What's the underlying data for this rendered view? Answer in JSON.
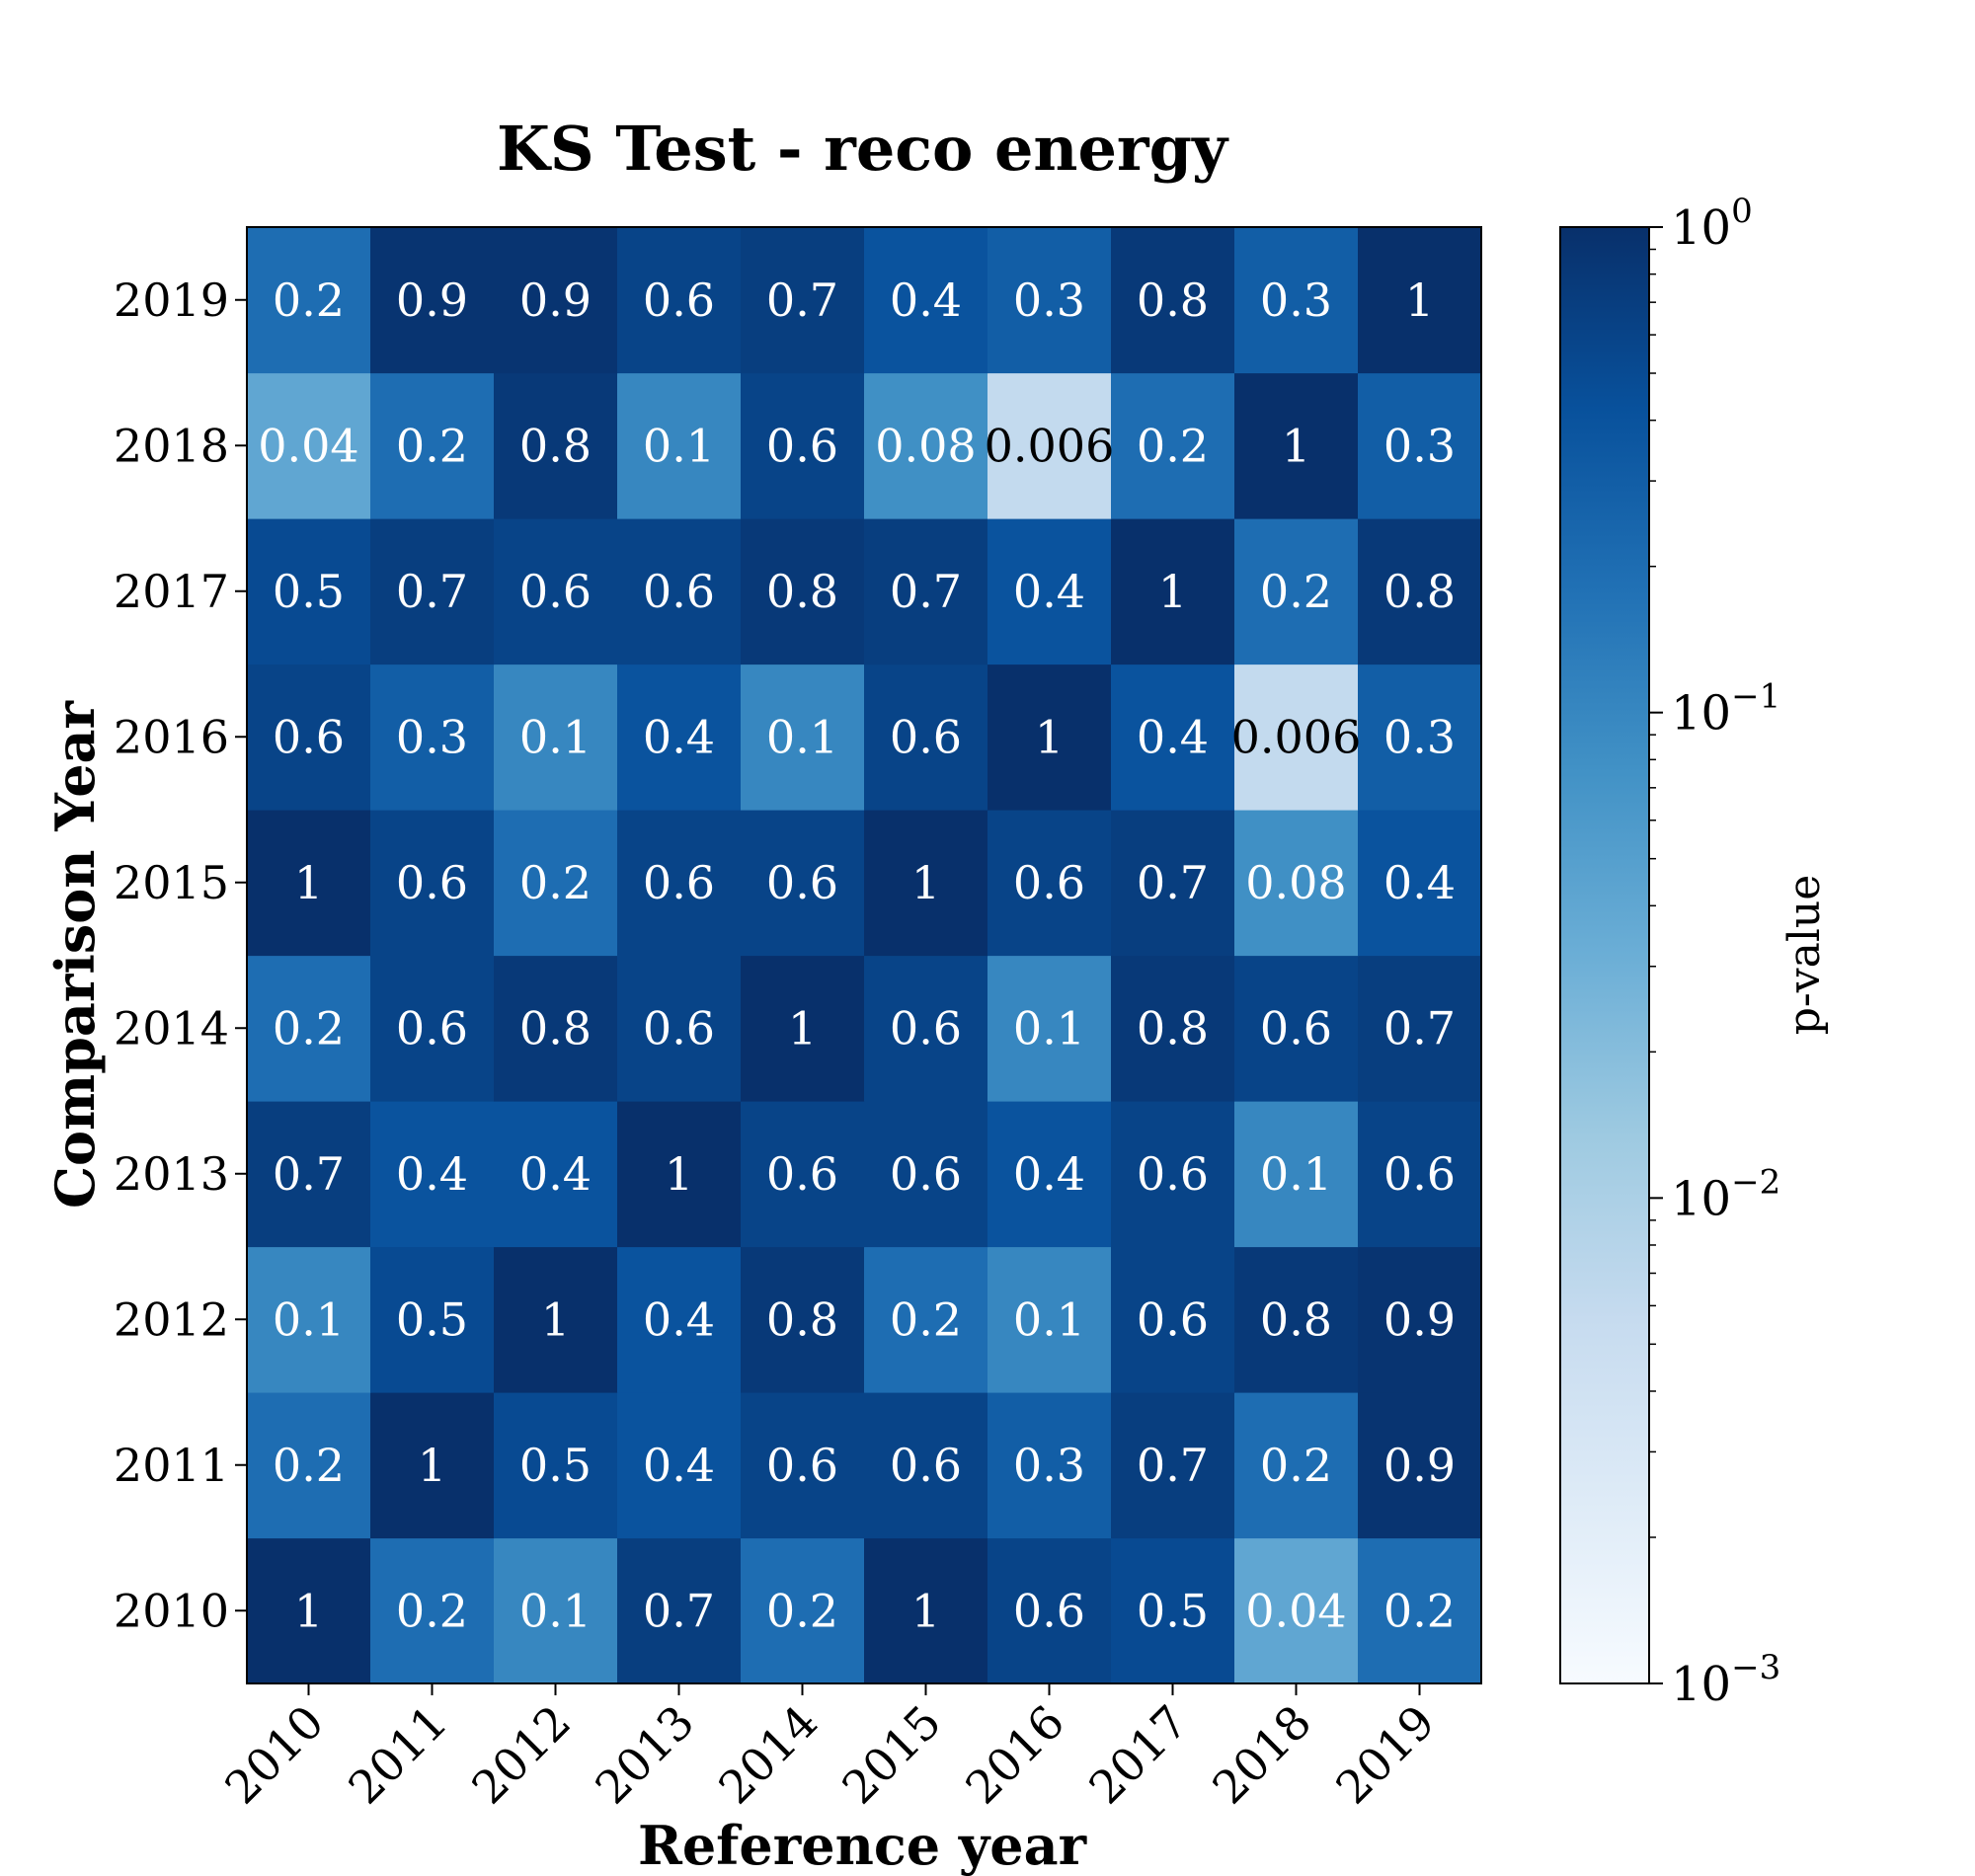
{
  "chart_data": {
    "type": "heatmap",
    "title": "KS Test - reco energy",
    "xlabel": "Reference year",
    "ylabel": "Comparison Year",
    "x_categories": [
      "2010",
      "2011",
      "2012",
      "2013",
      "2014",
      "2015",
      "2016",
      "2017",
      "2018",
      "2019"
    ],
    "y_categories": [
      "2010",
      "2011",
      "2012",
      "2013",
      "2014",
      "2015",
      "2016",
      "2017",
      "2018",
      "2019"
    ],
    "values": [
      [
        1,
        0.2,
        0.1,
        0.7,
        0.2,
        1,
        0.6,
        0.5,
        0.04,
        0.2
      ],
      [
        0.2,
        1,
        0.5,
        0.4,
        0.6,
        0.6,
        0.3,
        0.7,
        0.2,
        0.9
      ],
      [
        0.1,
        0.5,
        1,
        0.4,
        0.8,
        0.2,
        0.1,
        0.6,
        0.8,
        0.9
      ],
      [
        0.7,
        0.4,
        0.4,
        1,
        0.6,
        0.6,
        0.4,
        0.6,
        0.1,
        0.6
      ],
      [
        0.2,
        0.6,
        0.8,
        0.6,
        1,
        0.6,
        0.1,
        0.8,
        0.6,
        0.7
      ],
      [
        1,
        0.6,
        0.2,
        0.6,
        0.6,
        1,
        0.6,
        0.7,
        0.08,
        0.4
      ],
      [
        0.6,
        0.3,
        0.1,
        0.4,
        0.1,
        0.6,
        1,
        0.4,
        0.006,
        0.3
      ],
      [
        0.5,
        0.7,
        0.6,
        0.6,
        0.8,
        0.7,
        0.4,
        1,
        0.2,
        0.8
      ],
      [
        0.04,
        0.2,
        0.8,
        0.1,
        0.6,
        0.08,
        0.006,
        0.2,
        1,
        0.3
      ],
      [
        0.2,
        0.9,
        0.9,
        0.6,
        0.7,
        0.4,
        0.3,
        0.8,
        0.3,
        1
      ]
    ],
    "cell_labels": [
      [
        "1",
        "0.2",
        "0.1",
        "0.7",
        "0.2",
        "1",
        "0.6",
        "0.5",
        "0.04",
        "0.2"
      ],
      [
        "0.2",
        "1",
        "0.5",
        "0.4",
        "0.6",
        "0.6",
        "0.3",
        "0.7",
        "0.2",
        "0.9"
      ],
      [
        "0.1",
        "0.5",
        "1",
        "0.4",
        "0.8",
        "0.2",
        "0.1",
        "0.6",
        "0.8",
        "0.9"
      ],
      [
        "0.7",
        "0.4",
        "0.4",
        "1",
        "0.6",
        "0.6",
        "0.4",
        "0.6",
        "0.1",
        "0.6"
      ],
      [
        "0.2",
        "0.6",
        "0.8",
        "0.6",
        "1",
        "0.6",
        "0.1",
        "0.8",
        "0.6",
        "0.7"
      ],
      [
        "1",
        "0.6",
        "0.2",
        "0.6",
        "0.6",
        "1",
        "0.6",
        "0.7",
        "0.08",
        "0.4"
      ],
      [
        "0.6",
        "0.3",
        "0.1",
        "0.4",
        "0.1",
        "0.6",
        "1",
        "0.4",
        "0.006",
        "0.3"
      ],
      [
        "0.5",
        "0.7",
        "0.6",
        "0.6",
        "0.8",
        "0.7",
        "0.4",
        "1",
        "0.2",
        "0.8"
      ],
      [
        "0.04",
        "0.2",
        "0.8",
        "0.1",
        "0.6",
        "0.08",
        "0.006",
        "0.2",
        "1",
        "0.3"
      ],
      [
        "0.2",
        "0.9",
        "0.9",
        "0.6",
        "0.7",
        "0.4",
        "0.3",
        "0.8",
        "0.3",
        "1"
      ]
    ],
    "row_order_note": "rows listed from Comparison Year 2010 (bottom) to 2019 (top)",
    "colorbar": {
      "label": "p-value",
      "scale": "log",
      "range": [
        0.001,
        1
      ],
      "ticks": [
        {
          "base": "10",
          "exp": "0"
        },
        {
          "base": "10",
          "exp": "−1"
        },
        {
          "base": "10",
          "exp": "−2"
        },
        {
          "base": "10",
          "exp": "−3"
        }
      ],
      "colormap": "Blues",
      "colormap_stops": [
        "#f7fbff",
        "#deebf7",
        "#c6dbef",
        "#9ecae1",
        "#6baed6",
        "#4292c6",
        "#2171b5",
        "#08519c",
        "#08306b"
      ]
    }
  }
}
